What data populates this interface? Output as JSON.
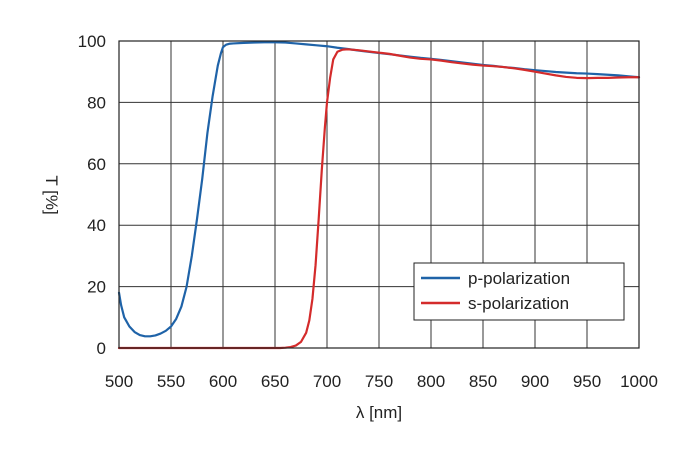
{
  "chart_data": {
    "type": "line",
    "title": "",
    "xlabel": "λ [nm]",
    "ylabel": "T [%]",
    "xlim": [
      500,
      1000
    ],
    "ylim": [
      0,
      100
    ],
    "x_ticks": [
      500,
      550,
      600,
      650,
      700,
      750,
      800,
      850,
      900,
      950,
      1000
    ],
    "y_ticks": [
      0,
      20,
      40,
      60,
      80,
      100
    ],
    "grid": true,
    "legend_position": "bottom-right",
    "series": [
      {
        "name": "p-polarization",
        "color": "#1f63a8",
        "x": [
          500,
          502,
          505,
          510,
          515,
          520,
          525,
          530,
          535,
          540,
          545,
          550,
          555,
          560,
          565,
          570,
          575,
          580,
          585,
          590,
          592,
          595,
          598,
          600,
          603,
          606,
          610,
          620,
          630,
          640,
          650,
          660,
          670,
          680,
          690,
          700,
          710,
          720,
          730,
          740,
          750,
          760,
          770,
          780,
          790,
          800,
          810,
          820,
          830,
          840,
          850,
          860,
          870,
          880,
          890,
          900,
          910,
          920,
          930,
          940,
          950,
          960,
          970,
          980,
          990,
          1000
        ],
        "y": [
          18,
          14,
          10,
          7,
          5.2,
          4.2,
          3.8,
          3.8,
          4.1,
          4.7,
          5.6,
          7,
          9.5,
          13.5,
          20,
          30,
          42,
          55,
          70,
          82,
          86,
          92,
          96,
          98,
          98.8,
          99.1,
          99.2,
          99.4,
          99.5,
          99.6,
          99.6,
          99.5,
          99.2,
          98.9,
          98.6,
          98.3,
          97.8,
          97.4,
          96.9,
          96.5,
          96.1,
          95.7,
          95.3,
          94.9,
          94.5,
          94.2,
          93.8,
          93.4,
          93.0,
          92.6,
          92.2,
          91.9,
          91.5,
          91.2,
          90.8,
          90.5,
          90.2,
          89.9,
          89.7,
          89.5,
          89.4,
          89.2,
          89.0,
          88.8,
          88.5,
          88.2
        ]
      },
      {
        "name": "s-polarization",
        "color": "#d42b2b",
        "x": [
          500,
          550,
          600,
          640,
          655,
          660,
          665,
          670,
          675,
          680,
          683,
          686,
          689,
          692,
          695,
          698,
          700,
          703,
          706,
          710,
          715,
          720,
          730,
          740,
          750,
          760,
          770,
          780,
          790,
          800,
          810,
          820,
          830,
          840,
          850,
          860,
          870,
          880,
          890,
          900,
          910,
          920,
          930,
          940,
          950,
          960,
          970,
          980,
          990,
          1000
        ],
        "y": [
          0,
          0,
          0,
          0,
          0,
          0.1,
          0.3,
          0.8,
          2,
          5,
          9,
          16,
          27,
          42,
          58,
          72,
          80,
          88,
          94,
          96.5,
          97.2,
          97.3,
          97,
          96.6,
          96.2,
          95.8,
          95.2,
          94.6,
          94.2,
          94.0,
          93.6,
          93.1,
          92.7,
          92.3,
          92.0,
          91.8,
          91.5,
          91.1,
          90.6,
          90.0,
          89.4,
          88.8,
          88.3,
          88.0,
          87.9,
          88.0,
          88.0,
          88.1,
          88.2,
          88.2
        ]
      }
    ]
  }
}
